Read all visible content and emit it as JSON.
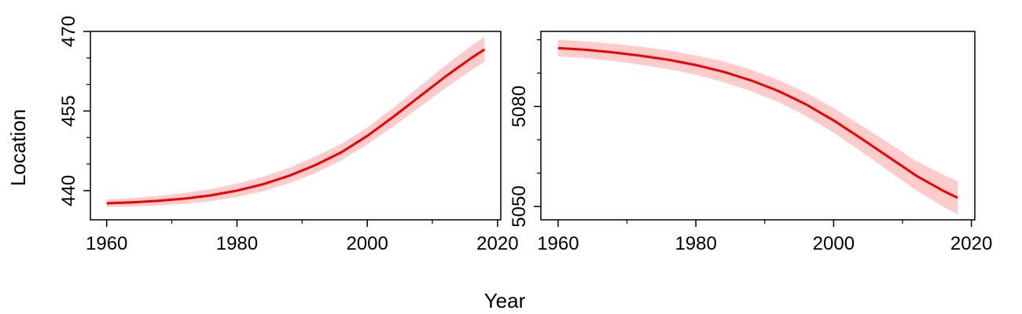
{
  "figure": {
    "xlabel": "Year",
    "ylabel": "Location"
  },
  "colors": {
    "line": "#ee0000",
    "band": "#ffcccc",
    "axis": "#000000"
  },
  "chart_data": [
    {
      "type": "line",
      "x": [
        1960,
        1964,
        1968,
        1972,
        1976,
        1980,
        1984,
        1988,
        1992,
        1996,
        2000,
        2004,
        2008,
        2012,
        2016,
        2018
      ],
      "series": [
        {
          "values": [
            437.6,
            437.8,
            438.1,
            438.5,
            439.1,
            440.0,
            441.2,
            442.8,
            444.8,
            447.2,
            450.3,
            453.9,
            457.7,
            461.5,
            465.0,
            466.6
          ],
          "lower": [
            436.9,
            437.0,
            437.2,
            437.5,
            438.0,
            438.8,
            439.9,
            441.4,
            443.3,
            445.7,
            448.7,
            452.1,
            455.7,
            459.3,
            462.7,
            464.3
          ],
          "upper": [
            438.3,
            438.6,
            439.0,
            439.6,
            440.3,
            441.3,
            442.6,
            444.3,
            446.4,
            448.8,
            451.9,
            455.6,
            459.6,
            463.6,
            467.3,
            469.0
          ]
        }
      ],
      "xlim": [
        1957.5,
        2020.5
      ],
      "ylim": [
        434.5,
        470
      ],
      "xticks": [
        1960,
        1980,
        2000,
        2020
      ],
      "xminor": [
        1970,
        1990,
        2010
      ],
      "yticks": [
        440,
        455,
        470
      ],
      "yminor": [
        445,
        450,
        460,
        465
      ],
      "xtick_labels": [
        "1960",
        "1980",
        "2000",
        "2020"
      ],
      "ytick_labels": [
        "440",
        "455",
        "470"
      ]
    },
    {
      "type": "line",
      "x": [
        1960,
        1964,
        1968,
        1972,
        1976,
        1980,
        1984,
        1988,
        1992,
        1996,
        2000,
        2004,
        2008,
        2012,
        2016,
        2018
      ],
      "series": [
        {
          "values": [
            5097.5,
            5097.0,
            5096.2,
            5095.2,
            5094.0,
            5092.4,
            5090.4,
            5087.8,
            5084.6,
            5080.6,
            5075.8,
            5070.4,
            5064.8,
            5059.2,
            5054.6,
            5052.6
          ],
          "lower": [
            5095.0,
            5094.5,
            5093.6,
            5092.5,
            5091.2,
            5089.5,
            5087.3,
            5084.6,
            5081.3,
            5077.1,
            5072.1,
            5066.5,
            5060.6,
            5054.8,
            5049.8,
            5047.6
          ],
          "upper": [
            5100.0,
            5099.5,
            5098.8,
            5097.9,
            5096.8,
            5095.3,
            5093.5,
            5091.0,
            5087.9,
            5084.1,
            5079.5,
            5074.3,
            5069.0,
            5063.6,
            5059.4,
            5057.6
          ]
        }
      ],
      "xlim": [
        1957.5,
        2020.5
      ],
      "ylim": [
        5046,
        5102.5
      ],
      "xticks": [
        1960,
        1980,
        2000,
        2020
      ],
      "xminor": [
        1970,
        1990,
        2010
      ],
      "yticks": [
        5050,
        5080
      ],
      "yminor": [
        5060,
        5070,
        5090,
        5100
      ],
      "xtick_labels": [
        "1960",
        "1980",
        "2000",
        "2020"
      ],
      "ytick_labels": [
        "5050",
        "5080"
      ]
    }
  ]
}
